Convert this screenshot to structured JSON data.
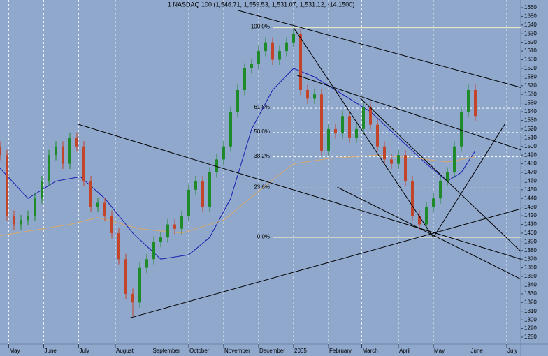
{
  "chart_data": {
    "type": "candlestick",
    "title": "1 NASDAQ 100 (1,546.71, 1,559.53, 1,531.07, 1,531.12, -14.1500)",
    "xlim": [
      0,
      298
    ],
    "ylim": [
      1280,
      1665
    ],
    "yticks": [
      1280,
      1290,
      1300,
      1310,
      1320,
      1330,
      1340,
      1350,
      1360,
      1370,
      1380,
      1390,
      1400,
      1410,
      1420,
      1430,
      1440,
      1450,
      1460,
      1470,
      1480,
      1490,
      1500,
      1510,
      1520,
      1530,
      1540,
      1550,
      1560,
      1570,
      1580,
      1590,
      1600,
      1610,
      1620,
      1630,
      1640,
      1650,
      1660
    ],
    "xticks": [
      {
        "value": 5,
        "label": "May"
      },
      {
        "value": 25,
        "label": "June"
      },
      {
        "value": 45,
        "label": "July"
      },
      {
        "value": 66,
        "label": "August"
      },
      {
        "value": 87,
        "label": "September"
      },
      {
        "value": 108,
        "label": "October"
      },
      {
        "value": 128,
        "label": "November"
      },
      {
        "value": 148,
        "label": "December"
      },
      {
        "value": 168,
        "label": "2005"
      },
      {
        "value": 188,
        "label": "February"
      },
      {
        "value": 207,
        "label": "March"
      },
      {
        "value": 228,
        "label": "April"
      },
      {
        "value": 248,
        "label": "May"
      },
      {
        "value": 269,
        "label": "June"
      },
      {
        "value": 290,
        "label": "July"
      }
    ],
    "grid": true,
    "up_color": "#1f8a2a",
    "down_color": "#c2452a",
    "trendline_color": "#000000",
    "candles": {
      "x": [
        0,
        4,
        8,
        12,
        16,
        20,
        24,
        28,
        32,
        36,
        40,
        44,
        48,
        52,
        56,
        60,
        64,
        68,
        72,
        76,
        80,
        84,
        88,
        92,
        96,
        100,
        104,
        108,
        112,
        116,
        120,
        124,
        128,
        132,
        136,
        140,
        144,
        148,
        152,
        156,
        160,
        164,
        168,
        172,
        176,
        180,
        184,
        188,
        192,
        196,
        200,
        204,
        208,
        212,
        216,
        220,
        224,
        228,
        232,
        236,
        240,
        244,
        248,
        252,
        256,
        260,
        264,
        268,
        272
      ],
      "open": [
        1500,
        1490,
        1420,
        1410,
        1415,
        1420,
        1440,
        1460,
        1490,
        1500,
        1480,
        1510,
        1500,
        1460,
        1430,
        1435,
        1420,
        1400,
        1370,
        1330,
        1320,
        1360,
        1370,
        1390,
        1395,
        1410,
        1405,
        1420,
        1450,
        1460,
        1430,
        1470,
        1485,
        1500,
        1540,
        1565,
        1590,
        1595,
        1610,
        1620,
        1600,
        1610,
        1620,
        1630,
        1565,
        1555,
        1560,
        1495,
        1520,
        1515,
        1535,
        1510,
        1520,
        1545,
        1525,
        1500,
        1485,
        1480,
        1490,
        1460,
        1420,
        1410,
        1430,
        1440,
        1460,
        1470,
        1500,
        1540,
        1565
      ],
      "high": [
        1506,
        1496,
        1426,
        1421,
        1426,
        1446,
        1466,
        1496,
        1506,
        1506,
        1516,
        1516,
        1506,
        1466,
        1441,
        1441,
        1426,
        1406,
        1376,
        1336,
        1366,
        1376,
        1396,
        1401,
        1416,
        1416,
        1426,
        1456,
        1466,
        1466,
        1476,
        1491,
        1506,
        1546,
        1571,
        1596,
        1601,
        1616,
        1626,
        1626,
        1616,
        1626,
        1636,
        1636,
        1571,
        1566,
        1566,
        1526,
        1526,
        1541,
        1541,
        1526,
        1551,
        1551,
        1531,
        1506,
        1491,
        1496,
        1496,
        1466,
        1426,
        1436,
        1446,
        1466,
        1476,
        1506,
        1546,
        1571,
        1571
      ],
      "low": [
        1484,
        1414,
        1404,
        1404,
        1409,
        1414,
        1434,
        1454,
        1484,
        1474,
        1474,
        1494,
        1454,
        1424,
        1424,
        1414,
        1394,
        1364,
        1324,
        1304,
        1314,
        1354,
        1364,
        1384,
        1389,
        1399,
        1399,
        1414,
        1444,
        1424,
        1424,
        1464,
        1479,
        1494,
        1534,
        1559,
        1584,
        1589,
        1604,
        1594,
        1594,
        1604,
        1614,
        1559,
        1549,
        1549,
        1489,
        1489,
        1509,
        1509,
        1504,
        1504,
        1514,
        1519,
        1494,
        1479,
        1474,
        1474,
        1454,
        1414,
        1404,
        1404,
        1424,
        1434,
        1454,
        1464,
        1494,
        1534,
        1529
      ],
      "close": [
        1490,
        1420,
        1410,
        1415,
        1420,
        1440,
        1460,
        1490,
        1500,
        1480,
        1510,
        1500,
        1460,
        1430,
        1435,
        1420,
        1400,
        1370,
        1330,
        1320,
        1360,
        1370,
        1390,
        1395,
        1410,
        1405,
        1420,
        1450,
        1460,
        1430,
        1470,
        1485,
        1500,
        1540,
        1565,
        1590,
        1595,
        1610,
        1620,
        1600,
        1610,
        1620,
        1630,
        1565,
        1555,
        1560,
        1495,
        1520,
        1515,
        1535,
        1510,
        1520,
        1545,
        1525,
        1500,
        1485,
        1480,
        1490,
        1460,
        1420,
        1410,
        1430,
        1440,
        1460,
        1470,
        1500,
        1540,
        1565,
        1535
      ]
    },
    "moving_averages": [
      {
        "color": "#1a1ab0",
        "x": [
          0,
          16,
          32,
          46,
          60,
          76,
          92,
          108,
          120,
          132,
          144,
          156,
          168,
          180,
          196,
          212,
          228,
          244,
          256,
          264,
          272
        ],
        "values": [
          1475,
          1440,
          1460,
          1465,
          1440,
          1400,
          1370,
          1375,
          1395,
          1440,
          1520,
          1565,
          1590,
          1580,
          1560,
          1540,
          1510,
          1480,
          1460,
          1470,
          1495
        ]
      },
      {
        "color": "#d9a86a",
        "x": [
          0,
          40,
          56,
          80,
          104,
          128,
          152,
          168,
          188,
          216,
          240,
          256,
          272
        ],
        "values": [
          1397,
          1410,
          1418,
          1405,
          1400,
          1415,
          1455,
          1480,
          1486,
          1490,
          1486,
          1482,
          1488
        ]
      }
    ],
    "trendlines": [
      {
        "x": [
          136,
          298
        ],
        "values": [
          1657,
          1568
        ]
      },
      {
        "x": [
          168,
          248
        ],
        "values": [
          1637,
          1395
        ]
      },
      {
        "x": [
          170,
          298
        ],
        "values": [
          1582,
          1496
        ]
      },
      {
        "x": [
          44,
          298
        ],
        "values": [
          1526,
          1370
        ]
      },
      {
        "x": [
          193,
          298
        ],
        "values": [
          1453,
          1347
        ]
      },
      {
        "x": [
          74,
          298
        ],
        "values": [
          1302,
          1428
        ]
      },
      {
        "x": [
          248,
          289
        ],
        "values": [
          1395,
          1526
        ]
      },
      {
        "x": [
          206,
          298
        ],
        "values": [
          1556,
          1379
        ]
      }
    ],
    "fib_levels": [
      {
        "label": "100.0%",
        "value": 1637
      },
      {
        "label": "61.8%",
        "value": 1544
      },
      {
        "label": "50.0%",
        "value": 1516
      },
      {
        "label": "38.2%",
        "value": 1488
      },
      {
        "label": "23.6%",
        "value": 1452
      },
      {
        "label": "0.0%",
        "value": 1395
      }
    ],
    "fib_start_x": 156
  }
}
